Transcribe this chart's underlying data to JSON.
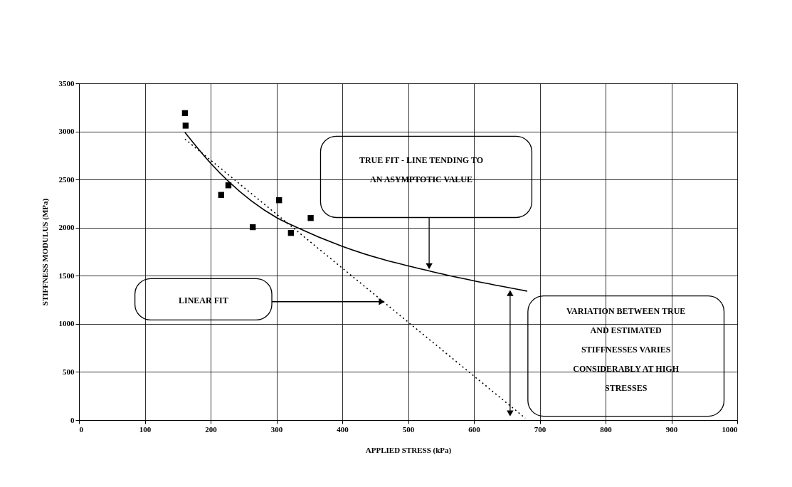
{
  "chart_data": {
    "type": "scatter",
    "xlabel": "APPLIED STRESS (kPa)",
    "ylabel": "STIFFNESS MODULUS (MPa)",
    "xlim": [
      0,
      1000
    ],
    "xticks": [
      0,
      100,
      200,
      300,
      400,
      500,
      600,
      700,
      800,
      900,
      1000
    ],
    "ylim": [
      0,
      3500
    ],
    "yticks": [
      0,
      500,
      1000,
      1500,
      2000,
      2500,
      3000,
      3500
    ],
    "grid": true,
    "series": [
      {
        "color": "#000000",
        "marker": "square",
        "x": [
          161,
          162,
          216,
          227,
          264,
          304,
          322,
          352
        ],
        "values": [
          3190,
          3060,
          2340,
          2440,
          2005,
          2285,
          1945,
          2100
        ]
      },
      {
        "type": "line",
        "color": "#000000",
        "line_style": "solid",
        "marker": "none",
        "x": [
          161,
          200,
          300,
          330,
          400,
          532,
          598,
          681
        ],
        "values": [
          2990,
          2670,
          2105,
          2005,
          1805,
          1550,
          1450,
          1340
        ]
      },
      {
        "type": "line",
        "color": "#000000",
        "line_style": "dotted",
        "marker": "none",
        "x": [
          161,
          678
        ],
        "values": [
          2920,
          20
        ]
      }
    ],
    "annotations": [
      "TRUE FIT -  LINE TENDING TO\nAN ASYMPTOTIC VALUE",
      "LINEAR FIT",
      "VARIATION BETWEEN TRUE\nAND ESTIMATED\nSTIFFNESSES VARIES\nCONSIDERABLY AT HIGH\nSTRESSES"
    ]
  }
}
